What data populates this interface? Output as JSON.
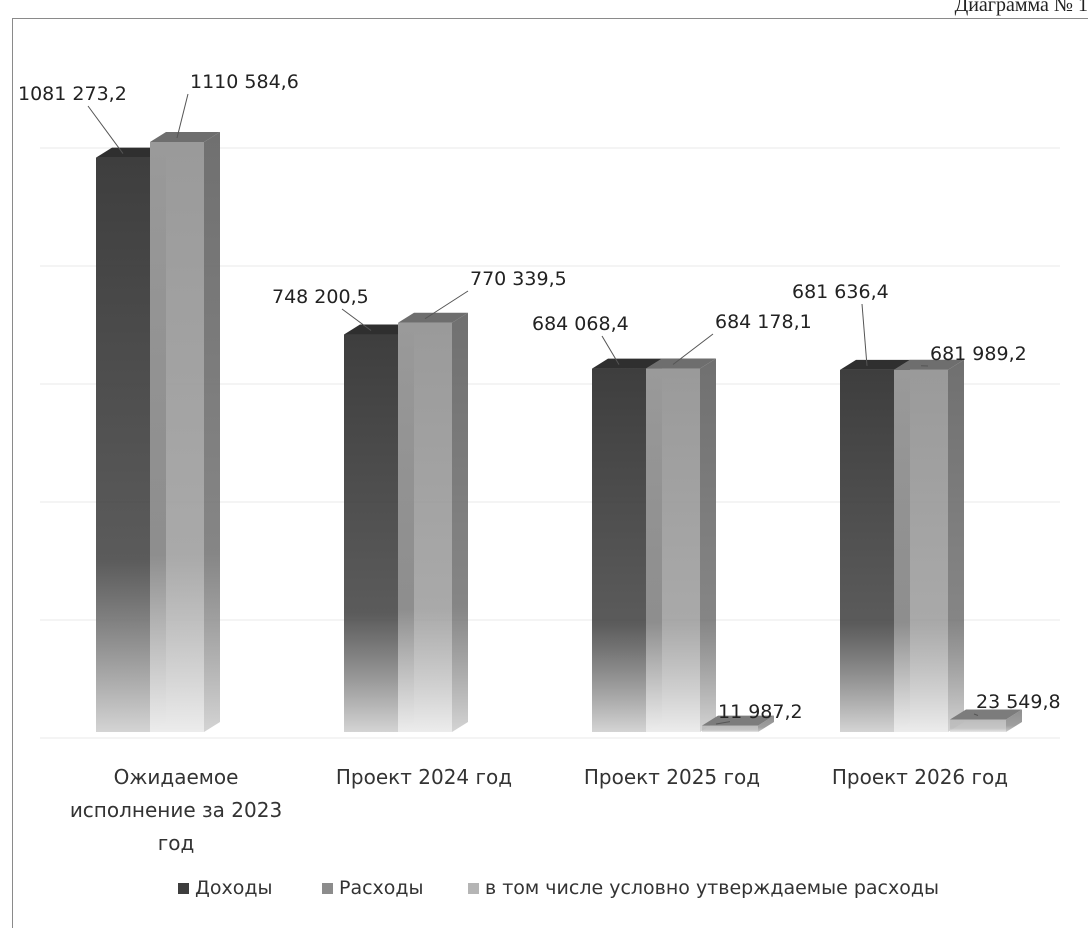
{
  "header": {
    "diagram_label": "Диаграмма № 1"
  },
  "chart_data": {
    "type": "bar",
    "categories": [
      "Ожидаемое исполнение за 2023 год",
      "Проект 2024 год",
      "Проект 2025 год",
      "Проект 2026 год"
    ],
    "category_label_lines": [
      [
        "Ожидаемое",
        "исполнение за 2023",
        "год"
      ],
      [
        "Проект 2024 год"
      ],
      [
        "Проект 2025 год"
      ],
      [
        "Проект 2026 год"
      ]
    ],
    "series": [
      {
        "name": "Доходы",
        "values": [
          1081273.2,
          748200.5,
          684068.4,
          681636.4
        ],
        "labels": [
          "1081 273,2",
          "748 200,5",
          "684 068,4",
          "681 636,4"
        ],
        "color": "#4a4a4a"
      },
      {
        "name": "Расходы",
        "values": [
          1110584.6,
          770339.5,
          684178.1,
          681989.2
        ],
        "labels": [
          "1110 584,6",
          "770 339,5",
          "684 178,1",
          "681 989,2"
        ],
        "color": "#8c8c8c"
      },
      {
        "name": "в том числе условно утверждаемые расходы",
        "values": [
          0,
          0,
          11987.2,
          23549.8
        ],
        "labels": [
          "",
          "",
          "11 987,2",
          "23 549,8"
        ],
        "color": "#b5b5b5"
      }
    ],
    "ylim": [
      0,
      1110584.6
    ],
    "grid": true,
    "legend": "bottom",
    "style": "3d-column-gradient"
  }
}
